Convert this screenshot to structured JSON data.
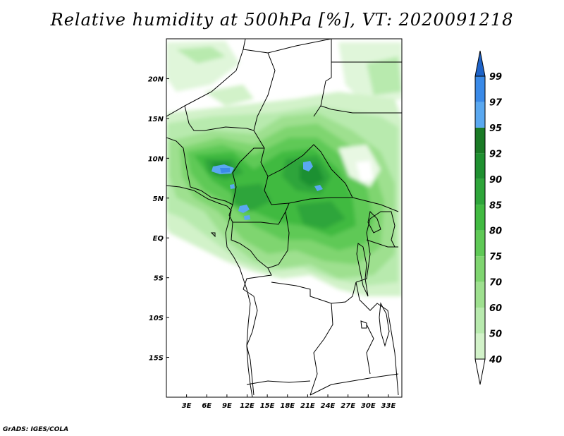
{
  "title": "Relative humidity at 500hPa [%], VT: 2020091218",
  "credit": "GrADS: IGES/COLA",
  "chart_data": {
    "type": "heatmap",
    "title": "Relative humidity at 500hPa [%], VT: 2020091218",
    "variable": "Relative humidity",
    "level": "500hPa",
    "units": "%",
    "valid_time": "2020091218",
    "lon_range": [
      0,
      35
    ],
    "lat_range": [
      -20,
      25
    ],
    "x_ticks": [
      {
        "lon": 3,
        "label": "3E"
      },
      {
        "lon": 6,
        "label": "6E"
      },
      {
        "lon": 9,
        "label": "9E"
      },
      {
        "lon": 12,
        "label": "12E"
      },
      {
        "lon": 15,
        "label": "15E"
      },
      {
        "lon": 18,
        "label": "18E"
      },
      {
        "lon": 21,
        "label": "21E"
      },
      {
        "lon": 24,
        "label": "24E"
      },
      {
        "lon": 27,
        "label": "27E"
      },
      {
        "lon": 30,
        "label": "30E"
      },
      {
        "lon": 33,
        "label": "33E"
      }
    ],
    "y_ticks": [
      {
        "lat": 20,
        "label": "20N"
      },
      {
        "lat": 15,
        "label": "15N"
      },
      {
        "lat": 10,
        "label": "10N"
      },
      {
        "lat": 5,
        "label": "5N"
      },
      {
        "lat": 0,
        "label": "EQ"
      },
      {
        "lat": -5,
        "label": "5S"
      },
      {
        "lat": -10,
        "label": "10S"
      },
      {
        "lat": -15,
        "label": "15S"
      }
    ],
    "colorbar": {
      "levels": [
        "40",
        "50",
        "60",
        "70",
        "75",
        "80",
        "85",
        "90",
        "92",
        "95",
        "97",
        "99"
      ],
      "colors": [
        "#e8f8e3",
        "#d2f2c9",
        "#b8eaae",
        "#9ee08f",
        "#7fd570",
        "#5fc956",
        "#41ba41",
        "#2ea53a",
        "#1f9030",
        "#1a7a25",
        "#5aa8f0",
        "#3a8ae8",
        "#1e63c8"
      ]
    },
    "regions": [
      {
        "name": "upper-band",
        "value": 60,
        "lon": [
          0,
          35
        ],
        "lat": [
          12,
          16
        ]
      },
      {
        "name": "west-africa-moist",
        "value": 85,
        "lon": [
          2,
          15
        ],
        "lat": [
          3,
          11
        ]
      },
      {
        "name": "central-africa-moist",
        "value": 87,
        "lon": [
          13,
          30
        ],
        "lat": [
          -3,
          9
        ]
      },
      {
        "name": "sudan-moist",
        "value": 86,
        "lon": [
          17,
          27
        ],
        "lat": [
          4,
          13
        ]
      },
      {
        "name": "maximum-patch-1",
        "value": 96,
        "lon": [
          8,
          11
        ],
        "lat": [
          8,
          9
        ]
      },
      {
        "name": "maximum-patch-2",
        "value": 96,
        "lon": [
          20,
          21
        ],
        "lat": [
          9,
          10
        ]
      },
      {
        "name": "maximum-patch-3",
        "value": 95,
        "lon": [
          10,
          12
        ],
        "lat": [
          3,
          4
        ]
      }
    ]
  }
}
